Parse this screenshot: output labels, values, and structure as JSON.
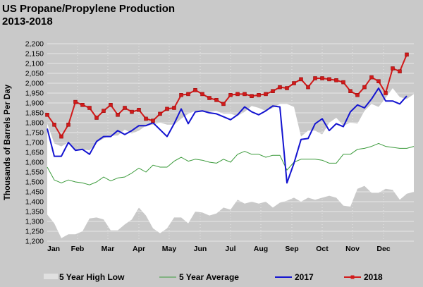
{
  "chart_data": {
    "type": "area",
    "title": "US Propane/Propylene Production",
    "subtitle": "2013-2018",
    "ylabel": "Thousands of Barrels Per Day",
    "xlabel": "",
    "ylim": [
      1200,
      2200
    ],
    "yticks": [
      1200,
      1250,
      1300,
      1350,
      1400,
      1450,
      1500,
      1550,
      1600,
      1650,
      1700,
      1750,
      1800,
      1850,
      1900,
      1950,
      2000,
      2050,
      2100,
      2150,
      2200
    ],
    "xticks": [
      "Jan",
      "Feb",
      "Mar",
      "Apr",
      "May",
      "Jun",
      "Jul",
      "Aug",
      "Sep",
      "Oct",
      "Nov",
      "Dec"
    ],
    "weeks": 53,
    "grid": true,
    "legend_position": "bottom",
    "series": [
      {
        "name": "5 Year High Low",
        "kind": "band",
        "color": "#ffffff",
        "high": [
          1795,
          1695,
          1680,
          1700,
          1660,
          1665,
          1660,
          1700,
          1720,
          1735,
          1735,
          1765,
          1745,
          1760,
          1785,
          1790,
          1800,
          1790,
          1790,
          1820,
          1845,
          1860,
          1855,
          1855,
          1860,
          1845,
          1845,
          1835,
          1855,
          1885,
          1875,
          1860,
          1875,
          1895,
          1895,
          1880,
          1730,
          1760,
          1760,
          1740,
          1800,
          1825,
          1785,
          1800,
          1795,
          1860,
          1895,
          1880,
          1925,
          1975,
          1930,
          1920,
          1945
        ],
        "low": [
          1335,
          1290,
          1215,
          1235,
          1235,
          1250,
          1315,
          1320,
          1310,
          1255,
          1255,
          1285,
          1310,
          1370,
          1330,
          1265,
          1240,
          1265,
          1320,
          1320,
          1290,
          1350,
          1345,
          1330,
          1340,
          1370,
          1360,
          1410,
          1390,
          1400,
          1390,
          1400,
          1370,
          1395,
          1405,
          1420,
          1400,
          1420,
          1410,
          1420,
          1430,
          1420,
          1380,
          1375,
          1465,
          1480,
          1445,
          1445,
          1465,
          1460,
          1410,
          1440,
          1450
        ]
      },
      {
        "name": "5 Year Average",
        "color": "#3a9a3a",
        "values": [
          1575,
          1510,
          1495,
          1510,
          1500,
          1495,
          1485,
          1500,
          1525,
          1505,
          1520,
          1525,
          1545,
          1570,
          1550,
          1585,
          1575,
          1575,
          1605,
          1625,
          1605,
          1615,
          1610,
          1600,
          1595,
          1615,
          1600,
          1640,
          1655,
          1640,
          1640,
          1625,
          1635,
          1635,
          1560,
          1600,
          1615,
          1615,
          1615,
          1610,
          1595,
          1595,
          1640,
          1640,
          1665,
          1670,
          1680,
          1695,
          1680,
          1675,
          1670,
          1670,
          1680
        ]
      },
      {
        "name": "2017",
        "color": "#1414d0",
        "values": [
          1770,
          1630,
          1630,
          1700,
          1660,
          1665,
          1640,
          1705,
          1730,
          1730,
          1760,
          1740,
          1760,
          1785,
          1785,
          1800,
          1765,
          1730,
          1795,
          1870,
          1795,
          1855,
          1860,
          1850,
          1845,
          1830,
          1815,
          1840,
          1880,
          1855,
          1840,
          1860,
          1885,
          1880,
          1495,
          1595,
          1715,
          1720,
          1795,
          1820,
          1760,
          1795,
          1780,
          1855,
          1890,
          1875,
          1920,
          1975,
          1910,
          1910,
          1895,
          1935,
          null
        ]
      },
      {
        "name": "2018",
        "color": "#d11a1a",
        "values": [
          1840,
          1790,
          1730,
          1790,
          1905,
          1890,
          1875,
          1825,
          1860,
          1890,
          1840,
          1875,
          1855,
          1865,
          1820,
          1810,
          1845,
          1870,
          1875,
          1940,
          1945,
          1965,
          1945,
          1925,
          1915,
          1895,
          1940,
          1945,
          1945,
          1935,
          1940,
          1945,
          1960,
          1980,
          1975,
          2000,
          2020,
          1980,
          2025,
          2025,
          2020,
          2015,
          2005,
          1960,
          1940,
          1980,
          2030,
          2010,
          1950,
          2075,
          2060,
          2145,
          null
        ]
      }
    ]
  }
}
